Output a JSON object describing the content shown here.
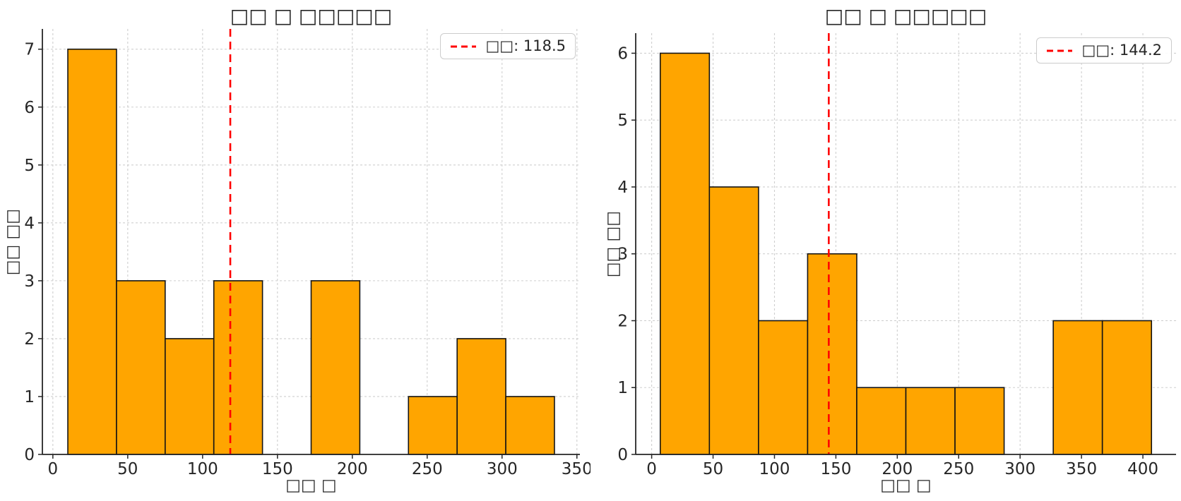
{
  "page": {
    "background": "#ffffff"
  },
  "style": {
    "bar_fill": "#FFA500",
    "bar_edge": "#141414",
    "mean_line": "#FF0000",
    "grid": "#cfcfcf",
    "axis": "#262626",
    "legend_border": "#cccccc"
  },
  "chart_data": [
    {
      "type": "histogram",
      "title": "□□ □ □□□□□",
      "xlabel": "□□ □",
      "ylabel": "□□ □□",
      "legend_label": "□□: 118.5",
      "legend_position": "upper right",
      "mean": 118.5,
      "bin_edges": [
        10,
        42.5,
        75,
        107.5,
        140,
        172.5,
        205,
        237.5,
        270,
        302.5,
        335
      ],
      "counts": [
        7,
        3,
        2,
        3,
        0,
        3,
        0,
        1,
        2,
        1
      ],
      "xticks": [
        0,
        50,
        100,
        150,
        200,
        250,
        300,
        350
      ],
      "yticks": [
        0,
        1,
        2,
        3,
        4,
        5,
        6,
        7
      ],
      "xlim": [
        -7,
        352
      ],
      "ylim": [
        0,
        7.35
      ],
      "grid": true
    },
    {
      "type": "histogram",
      "title": "□□ □ □□□□□",
      "xlabel": "□□ □",
      "ylabel": "□□ □□",
      "legend_label": "□□: 144.2",
      "legend_position": "upper right",
      "mean": 144.2,
      "bin_edges": [
        7,
        47,
        87,
        127,
        167,
        207,
        247,
        287,
        327,
        367,
        407
      ],
      "counts": [
        6,
        4,
        2,
        3,
        1,
        1,
        1,
        0,
        2,
        2
      ],
      "xticks": [
        0,
        50,
        100,
        150,
        200,
        250,
        300,
        350,
        400
      ],
      "yticks": [
        0,
        1,
        2,
        3,
        4,
        5,
        6
      ],
      "xlim": [
        -13,
        427
      ],
      "ylim": [
        0,
        6.3
      ],
      "grid": true
    }
  ]
}
